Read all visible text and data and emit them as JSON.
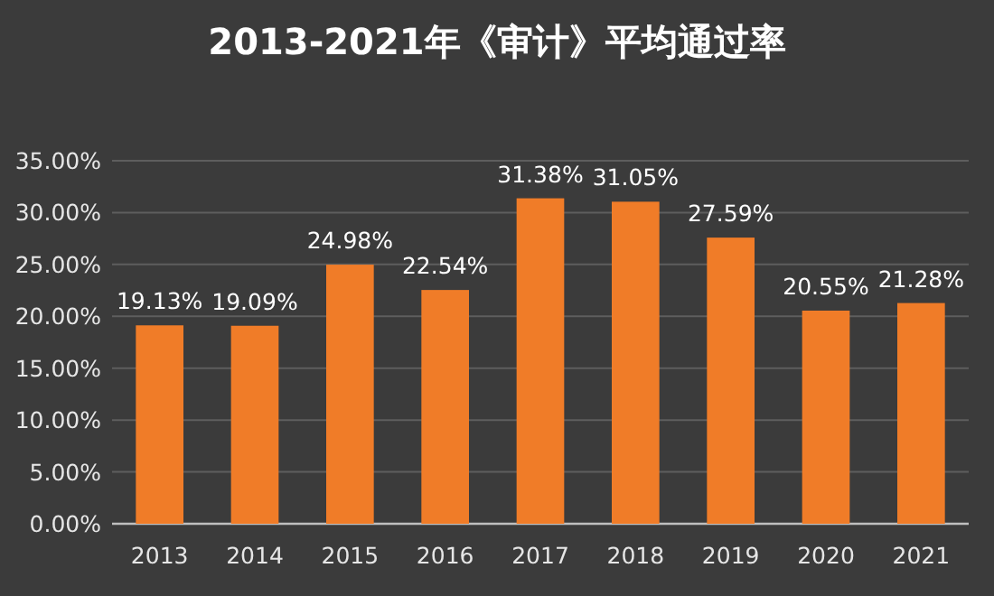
{
  "chart_data": {
    "type": "bar",
    "title": "2013-2021年《审计》平均通过率",
    "categories": [
      "2013",
      "2014",
      "2015",
      "2016",
      "2017",
      "2018",
      "2019",
      "2020",
      "2021"
    ],
    "values": [
      19.13,
      19.09,
      24.98,
      22.54,
      31.38,
      31.05,
      27.59,
      20.55,
      21.28
    ],
    "value_labels": [
      "19.13%",
      "19.09%",
      "24.98%",
      "22.54%",
      "31.38%",
      "31.05%",
      "27.59%",
      "20.55%",
      "21.28%"
    ],
    "color": "#f07c28",
    "ylim": [
      0,
      35
    ],
    "yticks": [
      {
        "value": 0,
        "label": "0.00%"
      },
      {
        "value": 5,
        "label": "5.00%"
      },
      {
        "value": 10,
        "label": "10.00%"
      },
      {
        "value": 15,
        "label": "15.00%"
      },
      {
        "value": 20,
        "label": "20.00%"
      },
      {
        "value": 25,
        "label": "25.00%"
      },
      {
        "value": 30,
        "label": "30.00%"
      },
      {
        "value": 35,
        "label": "35.00%"
      }
    ],
    "grid": "y"
  }
}
